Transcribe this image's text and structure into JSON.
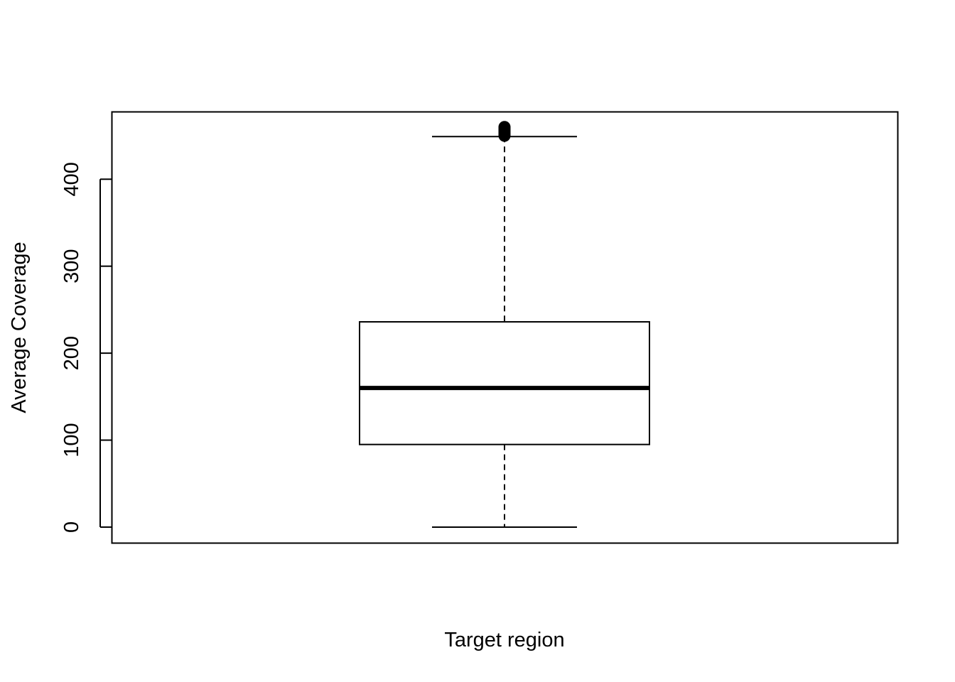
{
  "chart_data": {
    "type": "boxplot",
    "title": "",
    "xlabel": "Target region",
    "ylabel": "Average Coverage",
    "ylim": [
      -18,
      477
    ],
    "y_ticks": [
      0,
      100,
      200,
      300,
      400
    ],
    "y_tick_labels": [
      "0",
      "100",
      "200",
      "300",
      "400"
    ],
    "grid": false,
    "colors": {
      "box_fill": "#ffffff",
      "stroke": "#000000"
    },
    "boxes": [
      {
        "name": "",
        "min": 0,
        "q1": 95,
        "median": 160,
        "q3": 236,
        "max": 449,
        "outliers": [
          450,
          451,
          452,
          453,
          454,
          455,
          456,
          457,
          458,
          459,
          460
        ]
      }
    ]
  }
}
